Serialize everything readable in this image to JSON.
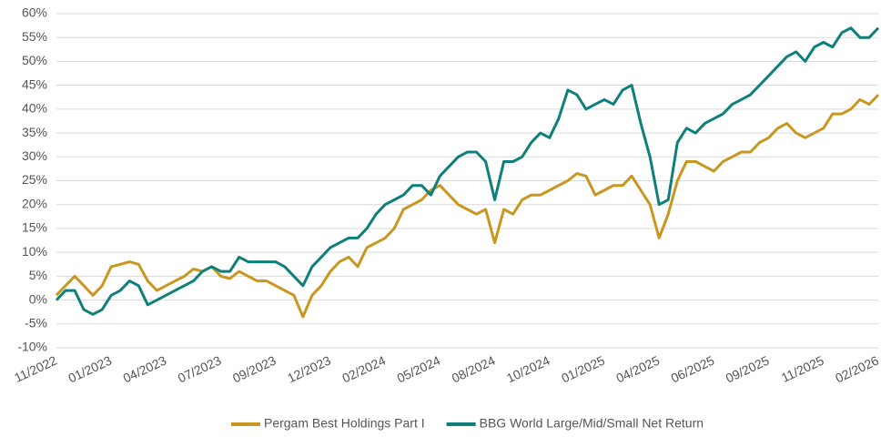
{
  "chart_data": {
    "type": "line",
    "categories": [
      "11/2022",
      null,
      null,
      null,
      null,
      null,
      "01/2023",
      null,
      null,
      null,
      null,
      null,
      "04/2023",
      null,
      null,
      null,
      null,
      null,
      "07/2023",
      null,
      null,
      null,
      null,
      null,
      "09/2023",
      null,
      null,
      null,
      null,
      null,
      "12/2023",
      null,
      null,
      null,
      null,
      null,
      "02/2024",
      null,
      null,
      null,
      null,
      null,
      "05/2024",
      null,
      null,
      null,
      null,
      null,
      "08/2024",
      null,
      null,
      null,
      null,
      null,
      "10/2024",
      null,
      null,
      null,
      null,
      null,
      "01/2025",
      null,
      null,
      null,
      null,
      null,
      "04/2025",
      null,
      null,
      null,
      null,
      null,
      "06/2025",
      null,
      null,
      null,
      null,
      null,
      "09/2025",
      null,
      null,
      null,
      null,
      null,
      "11/2025",
      null,
      null,
      null,
      null,
      null,
      "02/2026"
    ],
    "series": [
      {
        "name": "Pergam Best Holdings Part I",
        "color": "#c9961f",
        "values": [
          1,
          3,
          5,
          3,
          1,
          3,
          7,
          7.5,
          8,
          7.5,
          4,
          2,
          3,
          4,
          5,
          6.5,
          6,
          7,
          5,
          4.5,
          6,
          5,
          4,
          4,
          3,
          2,
          1,
          -3.5,
          1,
          3,
          6,
          8,
          9,
          7,
          11,
          12,
          13,
          15,
          19,
          20,
          21,
          23,
          24,
          22,
          20,
          19,
          18,
          19,
          12,
          19,
          18,
          21,
          22,
          22,
          23,
          24,
          25,
          26.5,
          26,
          22,
          23,
          24,
          24,
          26,
          23,
          20,
          13,
          18,
          25,
          29,
          29,
          28,
          27,
          29,
          30,
          31,
          31,
          33,
          34,
          36,
          37,
          35,
          34,
          35,
          36,
          39,
          39,
          40,
          42,
          41,
          43
        ]
      },
      {
        "name": "BBG World Large/Mid/Small Net Return",
        "color": "#0f7f7a",
        "values": [
          0,
          2,
          2,
          -2,
          -3,
          -2,
          1,
          2,
          4,
          3,
          -1,
          0,
          1,
          2,
          3,
          4,
          6,
          7,
          6,
          6,
          9,
          8,
          8,
          8,
          8,
          7,
          5,
          3,
          7,
          9,
          11,
          12,
          13,
          13,
          15,
          18,
          20,
          21,
          22,
          24,
          24,
          22,
          26,
          28,
          30,
          31,
          31,
          29,
          21,
          29,
          29,
          30,
          33,
          35,
          34,
          38,
          44,
          43,
          40,
          41,
          42,
          41,
          44,
          45,
          37,
          30,
          20,
          21,
          33,
          36,
          35,
          37,
          38,
          39,
          41,
          42,
          43,
          45,
          47,
          49,
          51,
          52,
          50,
          53,
          54,
          53,
          56,
          57,
          55,
          55,
          57
        ]
      }
    ],
    "ylim": [
      -10,
      60
    ],
    "yticks": [
      {
        "value": -10,
        "label": "-10%"
      },
      {
        "value": -5,
        "label": "-5%"
      },
      {
        "value": 0,
        "label": "0%"
      },
      {
        "value": 5,
        "label": "5%"
      },
      {
        "value": 10,
        "label": "10%"
      },
      {
        "value": 15,
        "label": "15%"
      },
      {
        "value": 20,
        "label": "20%"
      },
      {
        "value": 25,
        "label": "25%"
      },
      {
        "value": 30,
        "label": "30%"
      },
      {
        "value": 35,
        "label": "35%"
      },
      {
        "value": 40,
        "label": "40%"
      },
      {
        "value": 45,
        "label": "45%"
      },
      {
        "value": 50,
        "label": "50%"
      },
      {
        "value": 55,
        "label": "55%"
      },
      {
        "value": 60,
        "label": "60%"
      }
    ],
    "grid": true,
    "legend": "bottom"
  }
}
